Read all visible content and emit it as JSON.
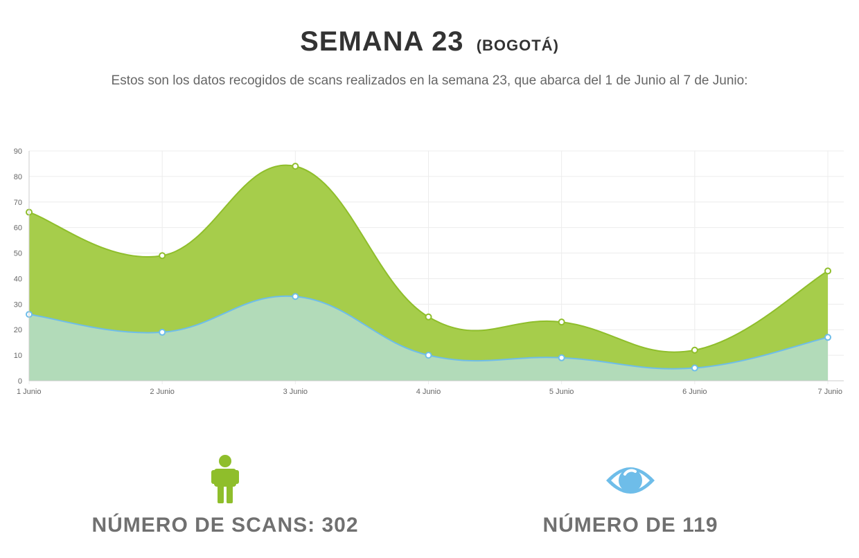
{
  "header": {
    "title": "SEMANA 23",
    "title_suffix": "(BOGOTÁ)",
    "subtitle": "Estos son los datos recogidos de scans realizados en la semana 23, que abarca del 1 de Junio al 7 de Junio:"
  },
  "chart_data": {
    "type": "area",
    "categories": [
      "1 Junio",
      "2 Junio",
      "3 Junio",
      "4 Junio",
      "5 Junio",
      "6 Junio",
      "7 Junio"
    ],
    "series": [
      {
        "values": [
          66,
          49,
          84,
          25,
          23,
          12,
          43
        ],
        "color": "#8fbe2b",
        "fill": "#a6cd4b"
      },
      {
        "values": [
          26,
          19,
          33,
          10,
          9,
          5,
          17
        ],
        "color": "#6ebde9",
        "fill": "#b2dbb9"
      }
    ],
    "ylim": [
      0,
      90
    ],
    "yticks": [
      0,
      10,
      20,
      30,
      40,
      50,
      60,
      70,
      80,
      90
    ],
    "grid": true,
    "smooth": true
  },
  "stats": {
    "scans": {
      "icon": "person-icon",
      "label": "NÚMERO DE SCANS: 302",
      "color": "#8fbe2b"
    },
    "views": {
      "icon": "eye-icon",
      "label": "NÚMERO DE 119",
      "color": "#6ebde9"
    }
  }
}
